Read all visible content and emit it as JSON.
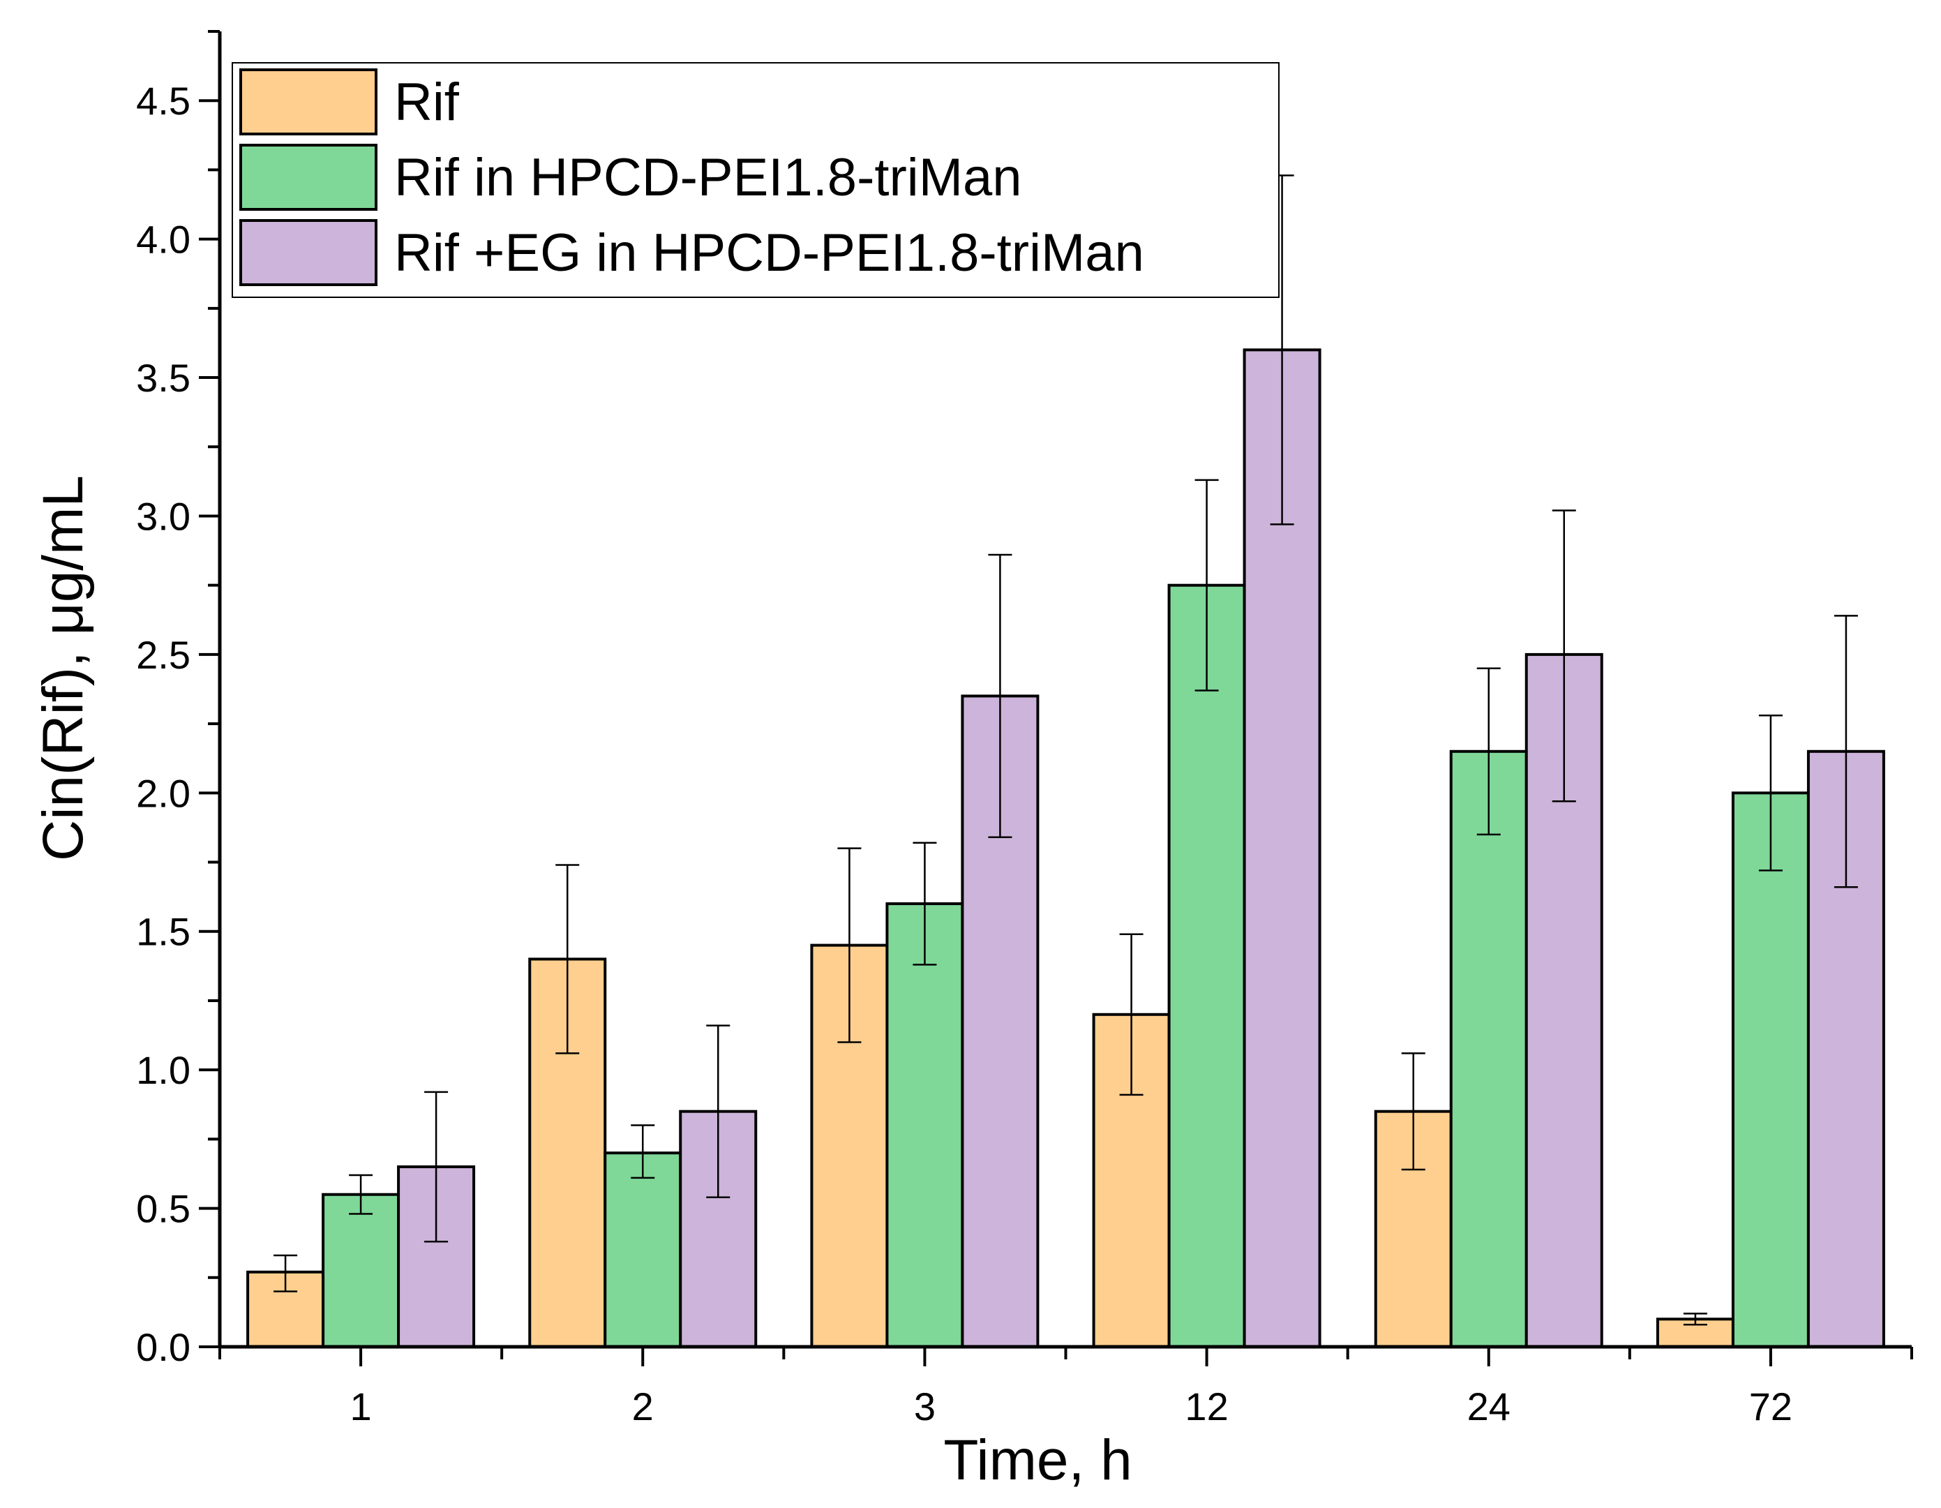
{
  "chart_data": {
    "type": "bar",
    "title": "",
    "xlabel": "Time, h",
    "ylabel": "Cin(Rif), μg/mL",
    "categories": [
      "1",
      "2",
      "3",
      "12",
      "24",
      "72"
    ],
    "ylim": [
      0,
      4.75
    ],
    "yticks": [
      0.0,
      0.5,
      1.0,
      1.5,
      2.0,
      2.5,
      3.0,
      3.5,
      4.0,
      4.5
    ],
    "ytick_labels": [
      "0.0",
      "0.5",
      "1.0",
      "1.5",
      "2.0",
      "2.5",
      "3.0",
      "3.5",
      "4.0",
      "4.5"
    ],
    "grid": false,
    "legend_position": "top-left",
    "series": [
      {
        "name": "Rif",
        "color": "#FECF8E",
        "values": [
          0.27,
          1.4,
          1.45,
          1.2,
          0.85,
          0.1
        ],
        "err_low": [
          0.2,
          1.06,
          1.1,
          0.91,
          0.64,
          0.08
        ],
        "err_high": [
          0.33,
          1.74,
          1.8,
          1.49,
          1.06,
          0.12
        ]
      },
      {
        "name": "Rif in HPCD-PEI1.8-triMan",
        "color": "#7FD898",
        "values": [
          0.55,
          0.7,
          1.6,
          2.75,
          2.15,
          2.0
        ],
        "err_low": [
          0.48,
          0.61,
          1.38,
          2.37,
          1.85,
          1.72
        ],
        "err_high": [
          0.62,
          0.8,
          1.82,
          3.13,
          2.45,
          2.28
        ]
      },
      {
        "name": "Rif +EG in HPCD-PEI1.8-triMan",
        "color": "#CDB4DA",
        "values": [
          0.65,
          0.85,
          2.35,
          3.6,
          2.5,
          2.15
        ],
        "err_low": [
          0.38,
          0.54,
          1.84,
          2.97,
          1.97,
          1.66
        ],
        "err_high": [
          0.92,
          1.16,
          2.86,
          4.23,
          3.02,
          2.64
        ]
      }
    ]
  }
}
